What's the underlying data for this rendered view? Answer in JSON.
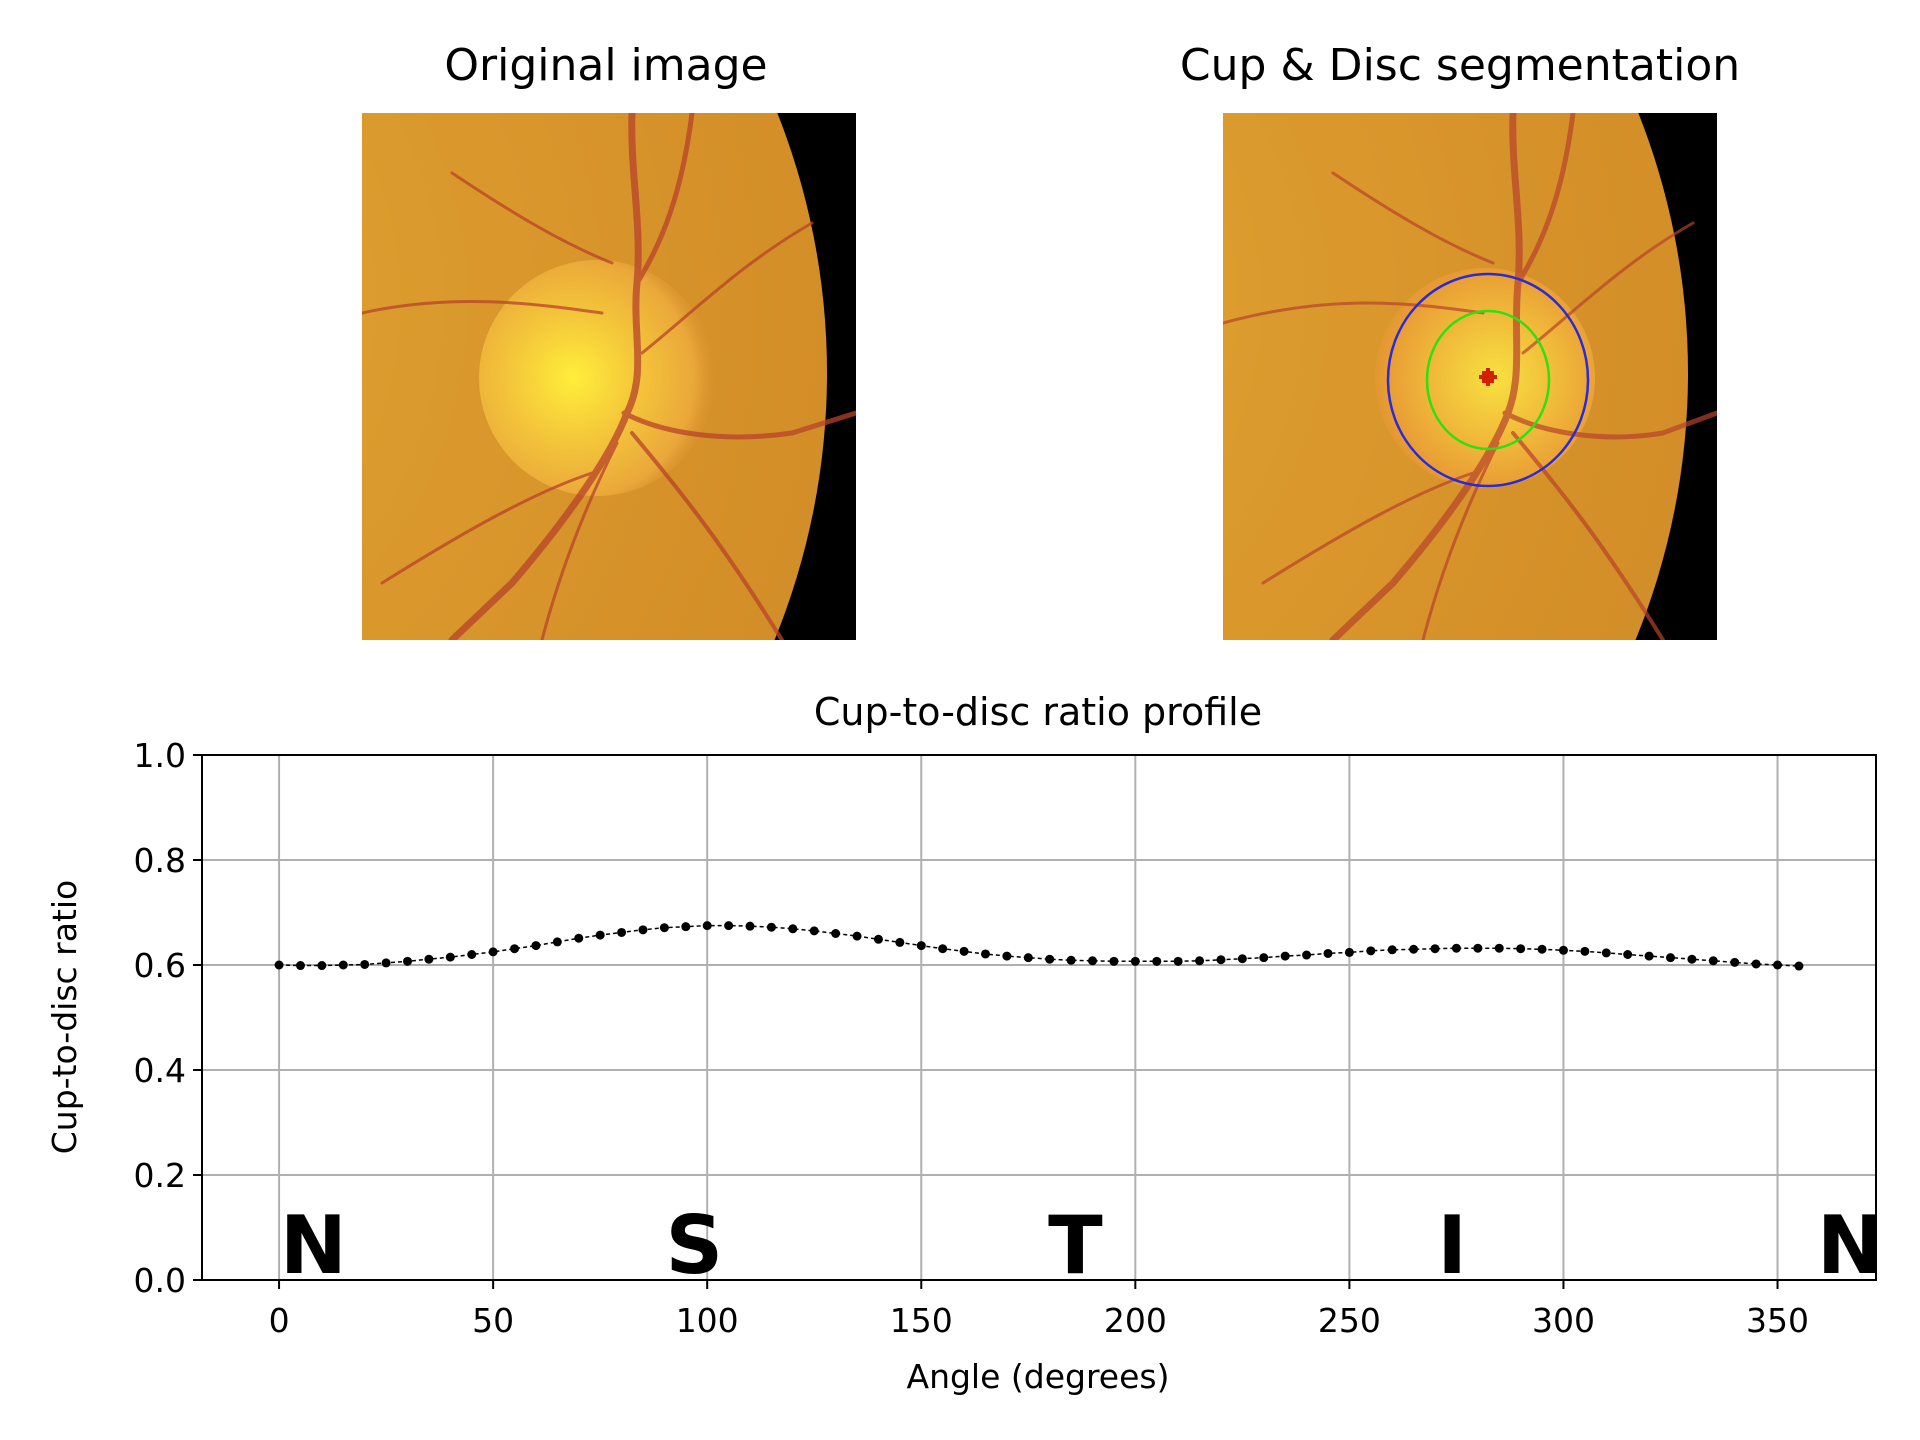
{
  "panels": {
    "left_title": "Original image",
    "right_title": "Cup & Disc segmentation"
  },
  "colors": {
    "disc_outline": "#2b2bd6",
    "cup_outline": "#2ee010",
    "center_marker": "#d22000",
    "fundus_base": "#d79a2a",
    "vessel": "#b8432a"
  },
  "chart_data": {
    "type": "line",
    "title": "Cup-to-disc ratio profile",
    "xlabel": "Angle (degrees)",
    "ylabel": "Cup-to-disc ratio",
    "xlim": [
      -18,
      373
    ],
    "ylim": [
      0.0,
      1.0
    ],
    "xticks": [
      0,
      50,
      100,
      150,
      200,
      250,
      300,
      350
    ],
    "yticks": [
      "0.0",
      "0.2",
      "0.4",
      "0.6",
      "0.8",
      "1.0"
    ],
    "grid": true,
    "sector_labels": [
      {
        "text": "N",
        "x": 8
      },
      {
        "text": "S",
        "x": 97
      },
      {
        "text": "T",
        "x": 186
      },
      {
        "text": "I",
        "x": 274
      },
      {
        "text": "N",
        "x": 367
      }
    ],
    "series": [
      {
        "x": [
          0,
          5,
          10,
          15,
          20,
          25,
          30,
          35,
          40,
          45,
          50,
          55,
          60,
          65,
          70,
          75,
          80,
          85,
          90,
          95,
          100,
          105,
          110,
          115,
          120,
          125,
          130,
          135,
          140,
          145,
          150,
          155,
          160,
          165,
          170,
          175,
          180,
          185,
          190,
          195,
          200,
          205,
          210,
          215,
          220,
          225,
          230,
          235,
          240,
          245,
          250,
          255,
          260,
          265,
          270,
          275,
          280,
          285,
          290,
          295,
          300,
          305,
          310,
          315,
          320,
          325,
          330,
          335,
          340,
          345,
          350,
          355
        ],
        "y": [
          0.6,
          0.599,
          0.599,
          0.6,
          0.601,
          0.604,
          0.607,
          0.611,
          0.615,
          0.62,
          0.625,
          0.631,
          0.637,
          0.644,
          0.651,
          0.657,
          0.662,
          0.667,
          0.671,
          0.673,
          0.675,
          0.675,
          0.674,
          0.672,
          0.669,
          0.665,
          0.66,
          0.655,
          0.649,
          0.643,
          0.637,
          0.631,
          0.626,
          0.621,
          0.617,
          0.614,
          0.611,
          0.609,
          0.608,
          0.607,
          0.607,
          0.607,
          0.607,
          0.608,
          0.61,
          0.612,
          0.614,
          0.617,
          0.619,
          0.622,
          0.624,
          0.627,
          0.629,
          0.63,
          0.631,
          0.632,
          0.632,
          0.632,
          0.631,
          0.63,
          0.628,
          0.626,
          0.623,
          0.62,
          0.617,
          0.614,
          0.611,
          0.608,
          0.605,
          0.602,
          0.6,
          0.598
        ]
      }
    ]
  }
}
